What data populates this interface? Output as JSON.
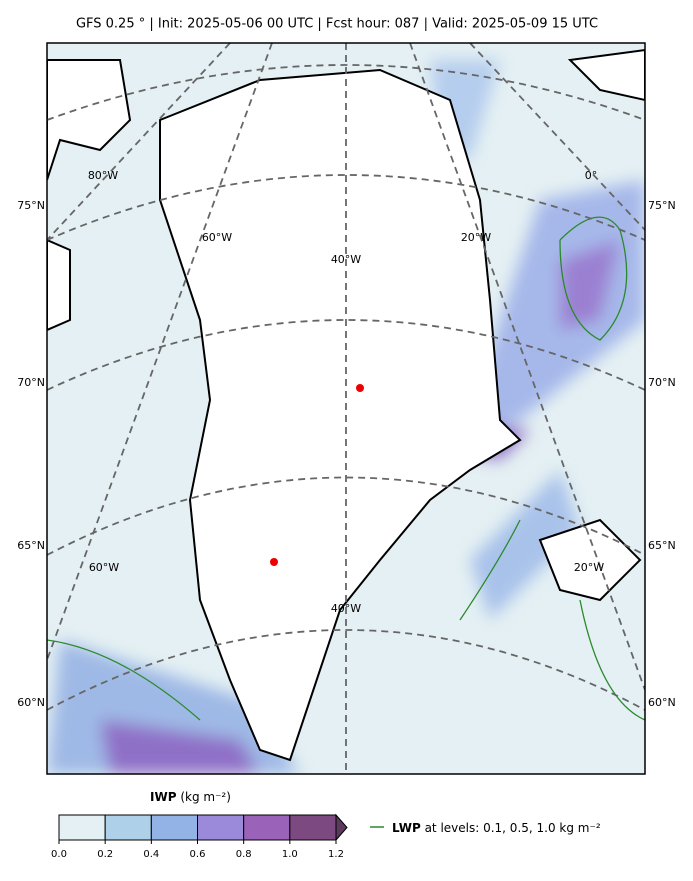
{
  "header": {
    "title": "GFS 0.25 ° | Init: 2025-05-06 00 UTC | Fcst hour: 087 | Valid: 2025-05-09 15 UTC"
  },
  "map": {
    "lat_labels_left": [
      "75°N",
      "70°N",
      "65°N",
      "60°N"
    ],
    "lat_labels_right": [
      "75°N",
      "70°N",
      "65°N",
      "60°N"
    ],
    "lon_labels_top": [
      "80°W",
      "60°W",
      "40°W",
      "20°W",
      "0°"
    ],
    "lon_labels_bottom": [
      "60°W",
      "40°W",
      "20°W"
    ]
  },
  "colorbar": {
    "name": "IWP",
    "unit": "(kg m⁻²)",
    "ticks": [
      {
        "value": 0,
        "label": "0.0"
      },
      {
        "value": 0.2,
        "label": "0.2"
      },
      {
        "value": 0.4,
        "label": "0.4"
      },
      {
        "value": 0.6,
        "label": "0.6"
      },
      {
        "value": 0.8,
        "label": "0.8"
      },
      {
        "value": 1.0,
        "label": "1.0"
      },
      {
        "value": 1.2,
        "label": "1.2"
      }
    ],
    "range": [
      0,
      1.2
    ]
  },
  "legend": {
    "name": "LWP",
    "text": "at levels: 0.1, 0.5, 1.0  kg m⁻²"
  }
}
